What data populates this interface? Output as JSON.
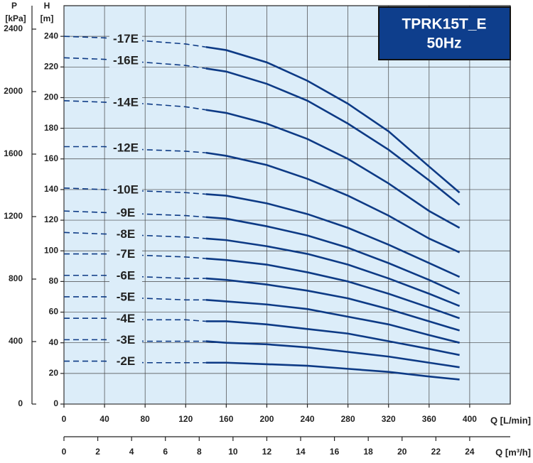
{
  "chart_data": {
    "type": "line",
    "title": "TPRK15T_E",
    "subtitle": "50Hz",
    "ylabel": "H",
    "yunit": "[m]",
    "y2label": "P",
    "y2unit": "[kPa]",
    "xlabel": "Q [L/min]",
    "x2label": "Q [m³/h]",
    "x": [
      0,
      40,
      80,
      120,
      140,
      160,
      200,
      240,
      280,
      320,
      360,
      390
    ],
    "xlim": [
      0,
      440
    ],
    "xticks": [
      0,
      40,
      80,
      120,
      160,
      200,
      240,
      280,
      320,
      360,
      400
    ],
    "x2lim": [
      0,
      26.4
    ],
    "x2ticks": [
      0,
      2,
      4,
      6,
      8,
      10,
      12,
      14,
      16,
      18,
      20,
      22,
      24
    ],
    "ylim": [
      0,
      260
    ],
    "yticks": [
      0,
      20,
      40,
      60,
      80,
      100,
      120,
      140,
      160,
      180,
      200,
      220,
      240
    ],
    "y2lim": [
      0,
      2550
    ],
    "y2ticks": [
      0,
      400,
      800,
      1200,
      1600,
      2000,
      2400
    ],
    "grid": true,
    "dashed_below_x": 140,
    "color": "#0d3a85",
    "series": [
      {
        "name": "-17E",
        "values": [
          240,
          239,
          237,
          235,
          233,
          231,
          223,
          211,
          196,
          178,
          155,
          138
        ]
      },
      {
        "name": "-16E",
        "values": [
          226,
          225,
          223,
          221,
          219,
          217,
          209,
          198,
          183,
          166,
          146,
          130
        ]
      },
      {
        "name": "-14E",
        "values": [
          198,
          197,
          196,
          194,
          192,
          190,
          183,
          173,
          160,
          144,
          126,
          115
        ]
      },
      {
        "name": "-12E",
        "values": [
          168,
          168,
          166,
          165,
          164,
          162,
          156,
          147,
          136,
          123,
          108,
          99
        ]
      },
      {
        "name": "-10E",
        "values": [
          141,
          140,
          139,
          138,
          137,
          136,
          131,
          124,
          115,
          104,
          92,
          83
        ]
      },
      {
        "name": "-9E",
        "values": [
          126,
          125,
          124,
          123,
          122,
          121,
          116,
          110,
          102,
          92,
          81,
          72
        ]
      },
      {
        "name": "-8E",
        "values": [
          112,
          111,
          110,
          109,
          108,
          107,
          103,
          98,
          91,
          82,
          72,
          64
        ]
      },
      {
        "name": "-7E",
        "values": [
          98,
          98,
          97,
          96,
          95,
          94,
          91,
          86,
          80,
          72,
          63,
          56
        ]
      },
      {
        "name": "-6E",
        "values": [
          84,
          84,
          83,
          82,
          82,
          81,
          78,
          74,
          69,
          62,
          54,
          48
        ]
      },
      {
        "name": "-5E",
        "values": [
          70,
          70,
          69,
          68,
          68,
          67,
          65,
          62,
          57,
          52,
          45,
          40
        ]
      },
      {
        "name": "-4E",
        "values": [
          56,
          56,
          55,
          55,
          54,
          54,
          52,
          49,
          46,
          41,
          36,
          32
        ]
      },
      {
        "name": "-3E",
        "values": [
          42,
          42,
          41,
          41,
          41,
          40,
          39,
          37,
          34,
          31,
          27,
          24
        ]
      },
      {
        "name": "-2E",
        "values": [
          28,
          28,
          27,
          27,
          27,
          27,
          26,
          25,
          23,
          21,
          18,
          16
        ]
      }
    ]
  }
}
